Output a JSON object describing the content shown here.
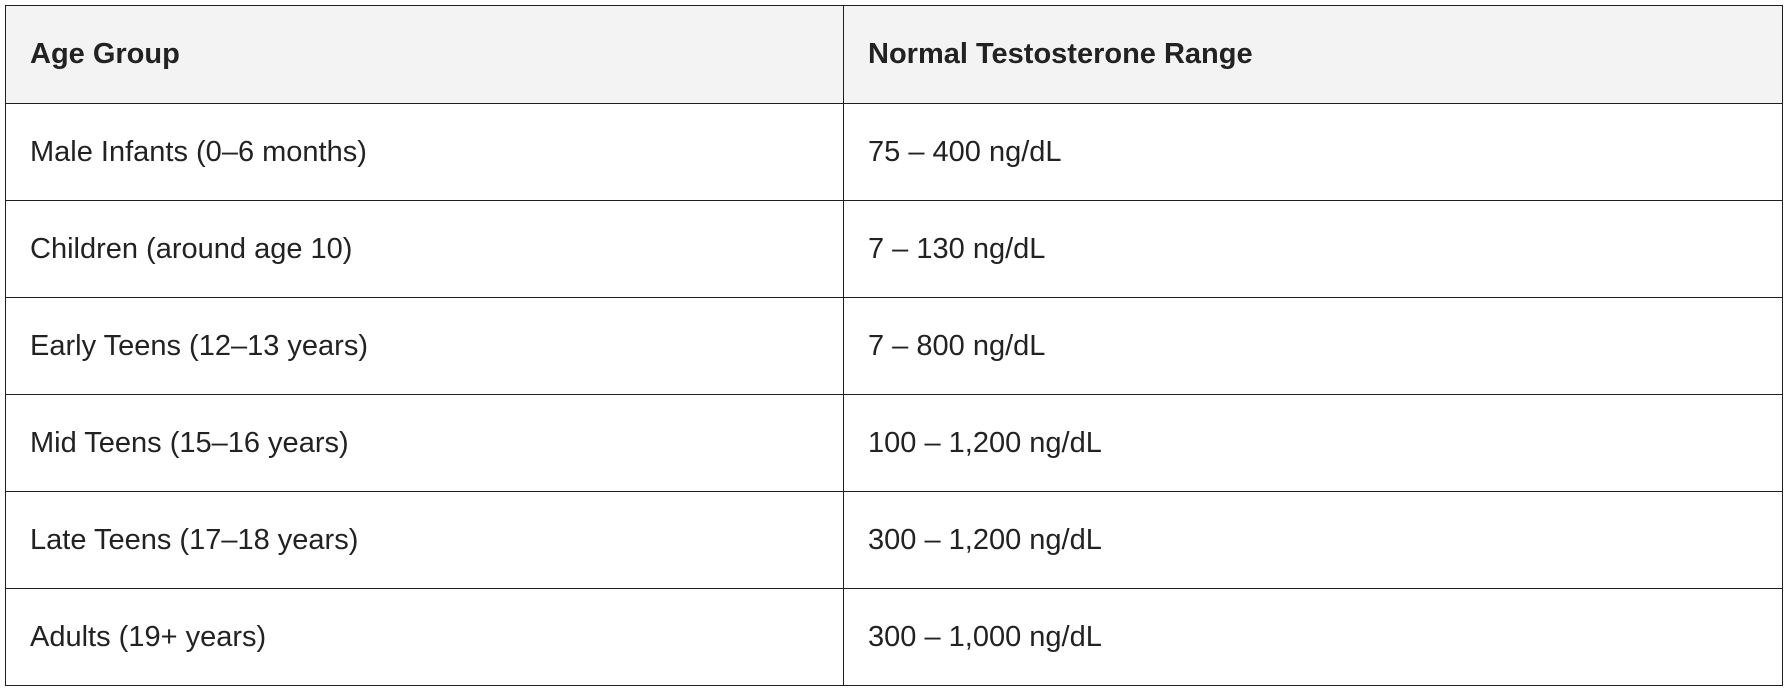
{
  "table": {
    "headers": [
      "Age Group",
      "Normal Testosterone Range"
    ],
    "rows": [
      [
        "Male Infants (0–6 months)",
        "75 – 400 ng/dL"
      ],
      [
        "Children (around age 10)",
        "7 – 130 ng/dL"
      ],
      [
        "Early Teens (12–13 years)",
        "7 – 800 ng/dL"
      ],
      [
        "Mid Teens (15–16 years)",
        "100 – 1,200 ng/dL"
      ],
      [
        "Late Teens (17–18 years)",
        "300 – 1,200 ng/dL"
      ],
      [
        "Adults (19+ years)",
        "300 – 1,000 ng/dL"
      ]
    ],
    "colors": {
      "header_bg": "#f3f3f3",
      "border": "#1f1f1f",
      "text": "#222222"
    }
  }
}
